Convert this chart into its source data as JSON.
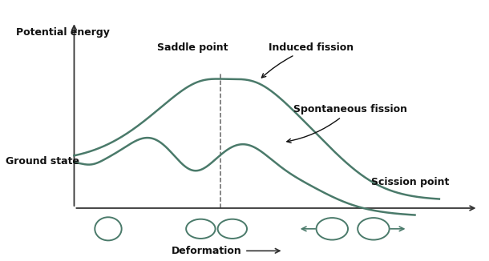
{
  "curve_color": "#4a7a6a",
  "axis_color": "#333333",
  "background_color": "#ffffff",
  "dashed_color": "#666666",
  "text_color": "#111111",
  "labels": {
    "saddle_point": "Saddle point",
    "induced_fission": "Induced fission",
    "spontaneous_fission": "Spontaneous fission",
    "scission_point": "Scission point",
    "ground_state": "Ground state",
    "deformation": "Deformation",
    "potential_energy": "Potential energy"
  },
  "figsize": [
    6.1,
    3.26
  ],
  "dpi": 100
}
